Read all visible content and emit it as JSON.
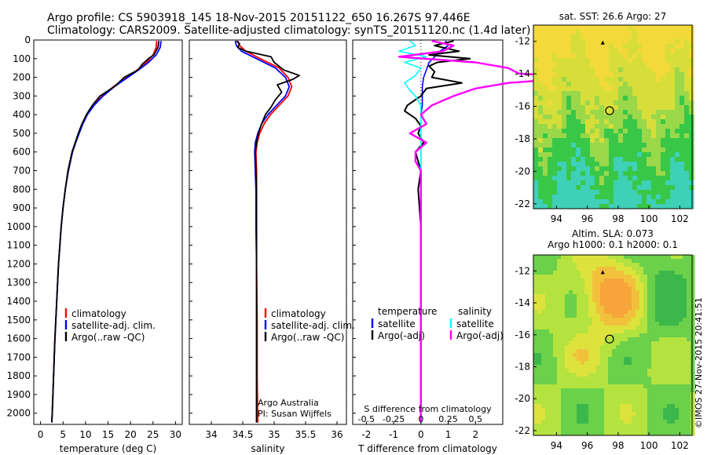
{
  "header": {
    "line1": "Argo profile: CS 5903918_145 18-Nov-2015 20151122_650 16.267S 97.446E",
    "line2": "Climatology: CARS2009. Satellite-adjusted climatology: synTS_20151120.nc (1.4d later)"
  },
  "depth_ticks": [
    0,
    100,
    200,
    300,
    400,
    500,
    600,
    700,
    800,
    900,
    1000,
    1100,
    1200,
    1300,
    1400,
    1500,
    1600,
    1700,
    1800,
    1900,
    2000
  ],
  "depth_tick_labels": [
    "0",
    "100",
    "200",
    "300",
    "400",
    "500",
    "600",
    "700",
    "800",
    "900",
    "1000",
    "1100",
    "1200",
    "1300",
    "1400",
    "1500",
    "1600",
    "1700",
    "1800",
    "1900",
    "2000"
  ],
  "colors": {
    "climatology": "#ff0000",
    "satellite_adj": "#0000ff",
    "argo": "#000000",
    "salinity_satellite": "#00ffff",
    "salinity_argo": "#ff00ff"
  },
  "chart_data": [
    {
      "type": "line",
      "name": "temperature",
      "xlabel": "temperature (deg C)",
      "xlim": [
        -1.5,
        31.5
      ],
      "ylim": [
        2060,
        0
      ],
      "xticks": [
        0,
        5,
        10,
        15,
        20,
        25,
        30
      ],
      "xtick_labels": [
        "0",
        "5",
        "10",
        "15",
        "20",
        "25",
        "30"
      ],
      "legend": [
        "climatology",
        "satellite-adj. clim.",
        "Argo(..raw -QC)"
      ],
      "series": [
        {
          "name": "climatology",
          "depth": [
            5,
            40,
            80,
            120,
            160,
            200,
            250,
            300,
            350,
            400,
            450,
            500,
            550,
            600,
            700,
            800,
            900,
            1000,
            1200,
            1400,
            1600,
            1800,
            2000,
            2050
          ],
          "values": [
            25.8,
            25.7,
            25.0,
            23.6,
            21.5,
            19.2,
            16.2,
            13.7,
            11.7,
            10.3,
            9.3,
            8.5,
            7.8,
            7.1,
            6.2,
            5.5,
            5.0,
            4.6,
            4.0,
            3.6,
            3.2,
            2.9,
            2.6,
            2.5
          ]
        },
        {
          "name": "satellite-adj. clim.",
          "depth": [
            5,
            40,
            80,
            120,
            160,
            200,
            250,
            300,
            350,
            400,
            450,
            500,
            550,
            600,
            700,
            800,
            900,
            1000,
            1200,
            1400,
            1600,
            1800,
            2000,
            2050
          ],
          "values": [
            26.8,
            26.6,
            25.7,
            24.0,
            21.8,
            19.4,
            16.4,
            13.9,
            11.9,
            10.4,
            9.4,
            8.6,
            7.8,
            7.1,
            6.2,
            5.5,
            5.0,
            4.6,
            4.0,
            3.6,
            3.2,
            2.9,
            2.6,
            2.5
          ]
        },
        {
          "name": "Argo(..raw -QC)",
          "depth": [
            5,
            40,
            80,
            100,
            130,
            160,
            200,
            250,
            300,
            350,
            400,
            450,
            500,
            550,
            600,
            700,
            800,
            900,
            1000,
            1200,
            1400,
            1600,
            1800,
            2000,
            2050
          ],
          "values": [
            26.3,
            26.1,
            25.2,
            24.0,
            22.6,
            21.7,
            18.6,
            16.4,
            13.2,
            11.5,
            10.2,
            9.2,
            8.4,
            7.7,
            7.0,
            6.1,
            5.5,
            5.0,
            4.6,
            4.0,
            3.6,
            3.2,
            2.9,
            2.6,
            2.5
          ]
        }
      ]
    },
    {
      "type": "line",
      "name": "salinity",
      "xlabel": "salinity",
      "xlim": [
        33.65,
        36.15
      ],
      "ylim": [
        2060,
        0
      ],
      "xticks": [
        34,
        34.5,
        35,
        35.5,
        36
      ],
      "xtick_labels": [
        "34",
        "34.5",
        "35",
        "35.5",
        "36"
      ],
      "legend": [
        "climatology",
        "satellite-adj. clim.",
        "Argo(..raw -QC)"
      ],
      "annotations": [
        "Argo Australia",
        "PI: Susan Wijffels"
      ],
      "series": [
        {
          "name": "climatology",
          "depth": [
            5,
            30,
            60,
            100,
            150,
            200,
            250,
            300,
            350,
            400,
            450,
            500,
            550,
            600,
            700,
            800,
            1000,
            1200,
            1500,
            1800,
            2050
          ],
          "values": [
            34.42,
            34.45,
            34.55,
            34.78,
            35.08,
            35.22,
            35.28,
            35.22,
            35.08,
            34.94,
            34.84,
            34.77,
            34.73,
            34.71,
            34.72,
            34.72,
            34.72,
            34.72,
            34.73,
            34.73,
            34.74
          ]
        },
        {
          "name": "satellite-adj. clim.",
          "depth": [
            5,
            30,
            60,
            100,
            150,
            200,
            250,
            300,
            350,
            400,
            450,
            500,
            550,
            600,
            700,
            800,
            1000,
            1200,
            1500,
            1800,
            2050
          ],
          "values": [
            34.38,
            34.4,
            34.48,
            34.72,
            35.02,
            35.18,
            35.24,
            35.18,
            35.04,
            34.9,
            34.8,
            34.74,
            34.7,
            34.69,
            34.7,
            34.71,
            34.71,
            34.72,
            34.72,
            34.72,
            34.72
          ]
        },
        {
          "name": "Argo(..raw -QC)",
          "depth": [
            5,
            20,
            40,
            60,
            90,
            120,
            160,
            190,
            210,
            240,
            280,
            320,
            360,
            400,
            450,
            500,
            550,
            600,
            700,
            800,
            1000,
            1200,
            1500,
            1800,
            2050
          ],
          "values": [
            34.4,
            34.45,
            34.42,
            34.55,
            34.95,
            35.0,
            35.15,
            35.4,
            35.3,
            35.05,
            35.12,
            35.02,
            34.95,
            34.86,
            34.8,
            34.75,
            34.72,
            34.7,
            34.71,
            34.72,
            34.72,
            34.72,
            34.72,
            34.72,
            34.72
          ]
        }
      ]
    },
    {
      "type": "line",
      "name": "difference",
      "xlabel": "T difference from climatology",
      "x2label": "S difference from climatology",
      "xlim": [
        -2.5,
        3.0
      ],
      "ylim": [
        2060,
        0
      ],
      "xticks": [
        -2,
        -1,
        0,
        1,
        2
      ],
      "xtick_labels": [
        "-2",
        "-1",
        "0",
        "1",
        "2"
      ],
      "x2_ticks": [
        -0.5,
        -0.25,
        0,
        0.25,
        0.5
      ],
      "x2_tick_labels": [
        "-0.5",
        "-0.25",
        "0",
        "0.25",
        "0.5"
      ],
      "legend": {
        "temperature_title": "temperature",
        "salinity_title": "salinity",
        "temperature": [
          "satellite",
          "Argo(-adj)"
        ],
        "salinity": [
          "satellite",
          "Argo(-adj)"
        ]
      },
      "series": [
        {
          "name": "temperature satellite",
          "depth": [
            5,
            30,
            60,
            90,
            120,
            160,
            200,
            250,
            300,
            350,
            400,
            500,
            600,
            800,
            1000,
            1500,
            2050
          ],
          "values": [
            0.9,
            1.0,
            0.7,
            0.5,
            0.3,
            0.2,
            0.1,
            0.05,
            0.05,
            0.05,
            0.0,
            0.0,
            0.0,
            0.0,
            0.0,
            0.0,
            0.0
          ]
        },
        {
          "name": "temperature Argo(-adj)",
          "depth": [
            5,
            30,
            60,
            80,
            100,
            120,
            140,
            170,
            200,
            230,
            260,
            300,
            330,
            350,
            380,
            420,
            460,
            500,
            550,
            600,
            700,
            800,
            1000,
            1500,
            2050
          ],
          "values": [
            1.2,
            0.5,
            1.4,
            0.3,
            1.8,
            0.6,
            0.3,
            0.5,
            0.4,
            1.5,
            0.2,
            0.0,
            -0.3,
            -0.5,
            -0.6,
            -0.2,
            0.0,
            -0.1,
            0.1,
            -0.2,
            0.0,
            -0.1,
            0.0,
            0.0,
            0.0
          ]
        },
        {
          "name": "salinity satellite",
          "depth": [
            5,
            30,
            60,
            90,
            120,
            150,
            190,
            230,
            270,
            300,
            350,
            400,
            500,
            600,
            800,
            1000,
            1500,
            2050
          ],
          "values": [
            -0.1,
            -0.05,
            -0.2,
            0.05,
            -0.15,
            0.0,
            -0.05,
            -0.15,
            -0.1,
            -0.05,
            0.0,
            0.0,
            0.0,
            0.0,
            0.0,
            0.0,
            0.0,
            0.0
          ]
        },
        {
          "name": "salinity Argo(-adj)",
          "depth": [
            5,
            30,
            60,
            90,
            120,
            150,
            180,
            200,
            230,
            260,
            300,
            350,
            400,
            450,
            500,
            550,
            600,
            650,
            700,
            800,
            900,
            1000,
            1200,
            1500,
            1800,
            2050
          ],
          "values": [
            0.1,
            0.3,
            0.2,
            -0.2,
            0.5,
            0.8,
            0.9,
            1.5,
            0.8,
            0.5,
            0.3,
            0.1,
            0.0,
            0.05,
            -0.1,
            0.05,
            -0.05,
            -0.05,
            0.0,
            0.0,
            0.0,
            0.0,
            0.0,
            0.0,
            0.0,
            0.0
          ]
        }
      ]
    },
    {
      "type": "heatmap",
      "name": "sst_map",
      "title": "sat. SST: 26.6 Argo: 27",
      "xlim": [
        92.5,
        102.8
      ],
      "ylim": [
        -22.3,
        -11.0
      ],
      "xticks": [
        94,
        96,
        98,
        100,
        102
      ],
      "xtick_labels": [
        "94",
        "96",
        "98",
        "100",
        "102"
      ],
      "yticks": [
        -12,
        -14,
        -16,
        -18,
        -20,
        -22
      ],
      "ytick_labels": [
        "-12",
        "-14",
        "-16",
        "-18",
        "-20",
        "-22"
      ],
      "float_position": [
        97.446,
        -16.267
      ],
      "previous_position": [
        97.0,
        -12.1
      ]
    },
    {
      "type": "heatmap",
      "name": "sla_map",
      "title": "Altim. SLA: 0.073",
      "subtitle": "Argo h1000: 0.1 h2000: 0.1",
      "xlim": [
        92.5,
        102.8
      ],
      "ylim": [
        -22.3,
        -11.0
      ],
      "xticks": [
        94,
        96,
        98,
        100,
        102
      ],
      "xtick_labels": [
        "94",
        "96",
        "98",
        "100",
        "102"
      ],
      "yticks": [
        -12,
        -14,
        -16,
        -18,
        -20,
        -22
      ],
      "ytick_labels": [
        "-12",
        "-14",
        "-16",
        "-18",
        "-20",
        "-22"
      ],
      "float_position": [
        97.446,
        -16.267
      ],
      "previous_position": [
        97.0,
        -12.1
      ]
    }
  ],
  "footer": {
    "stamp": "©IMOS 27-Nov-2015 20:41:51"
  }
}
